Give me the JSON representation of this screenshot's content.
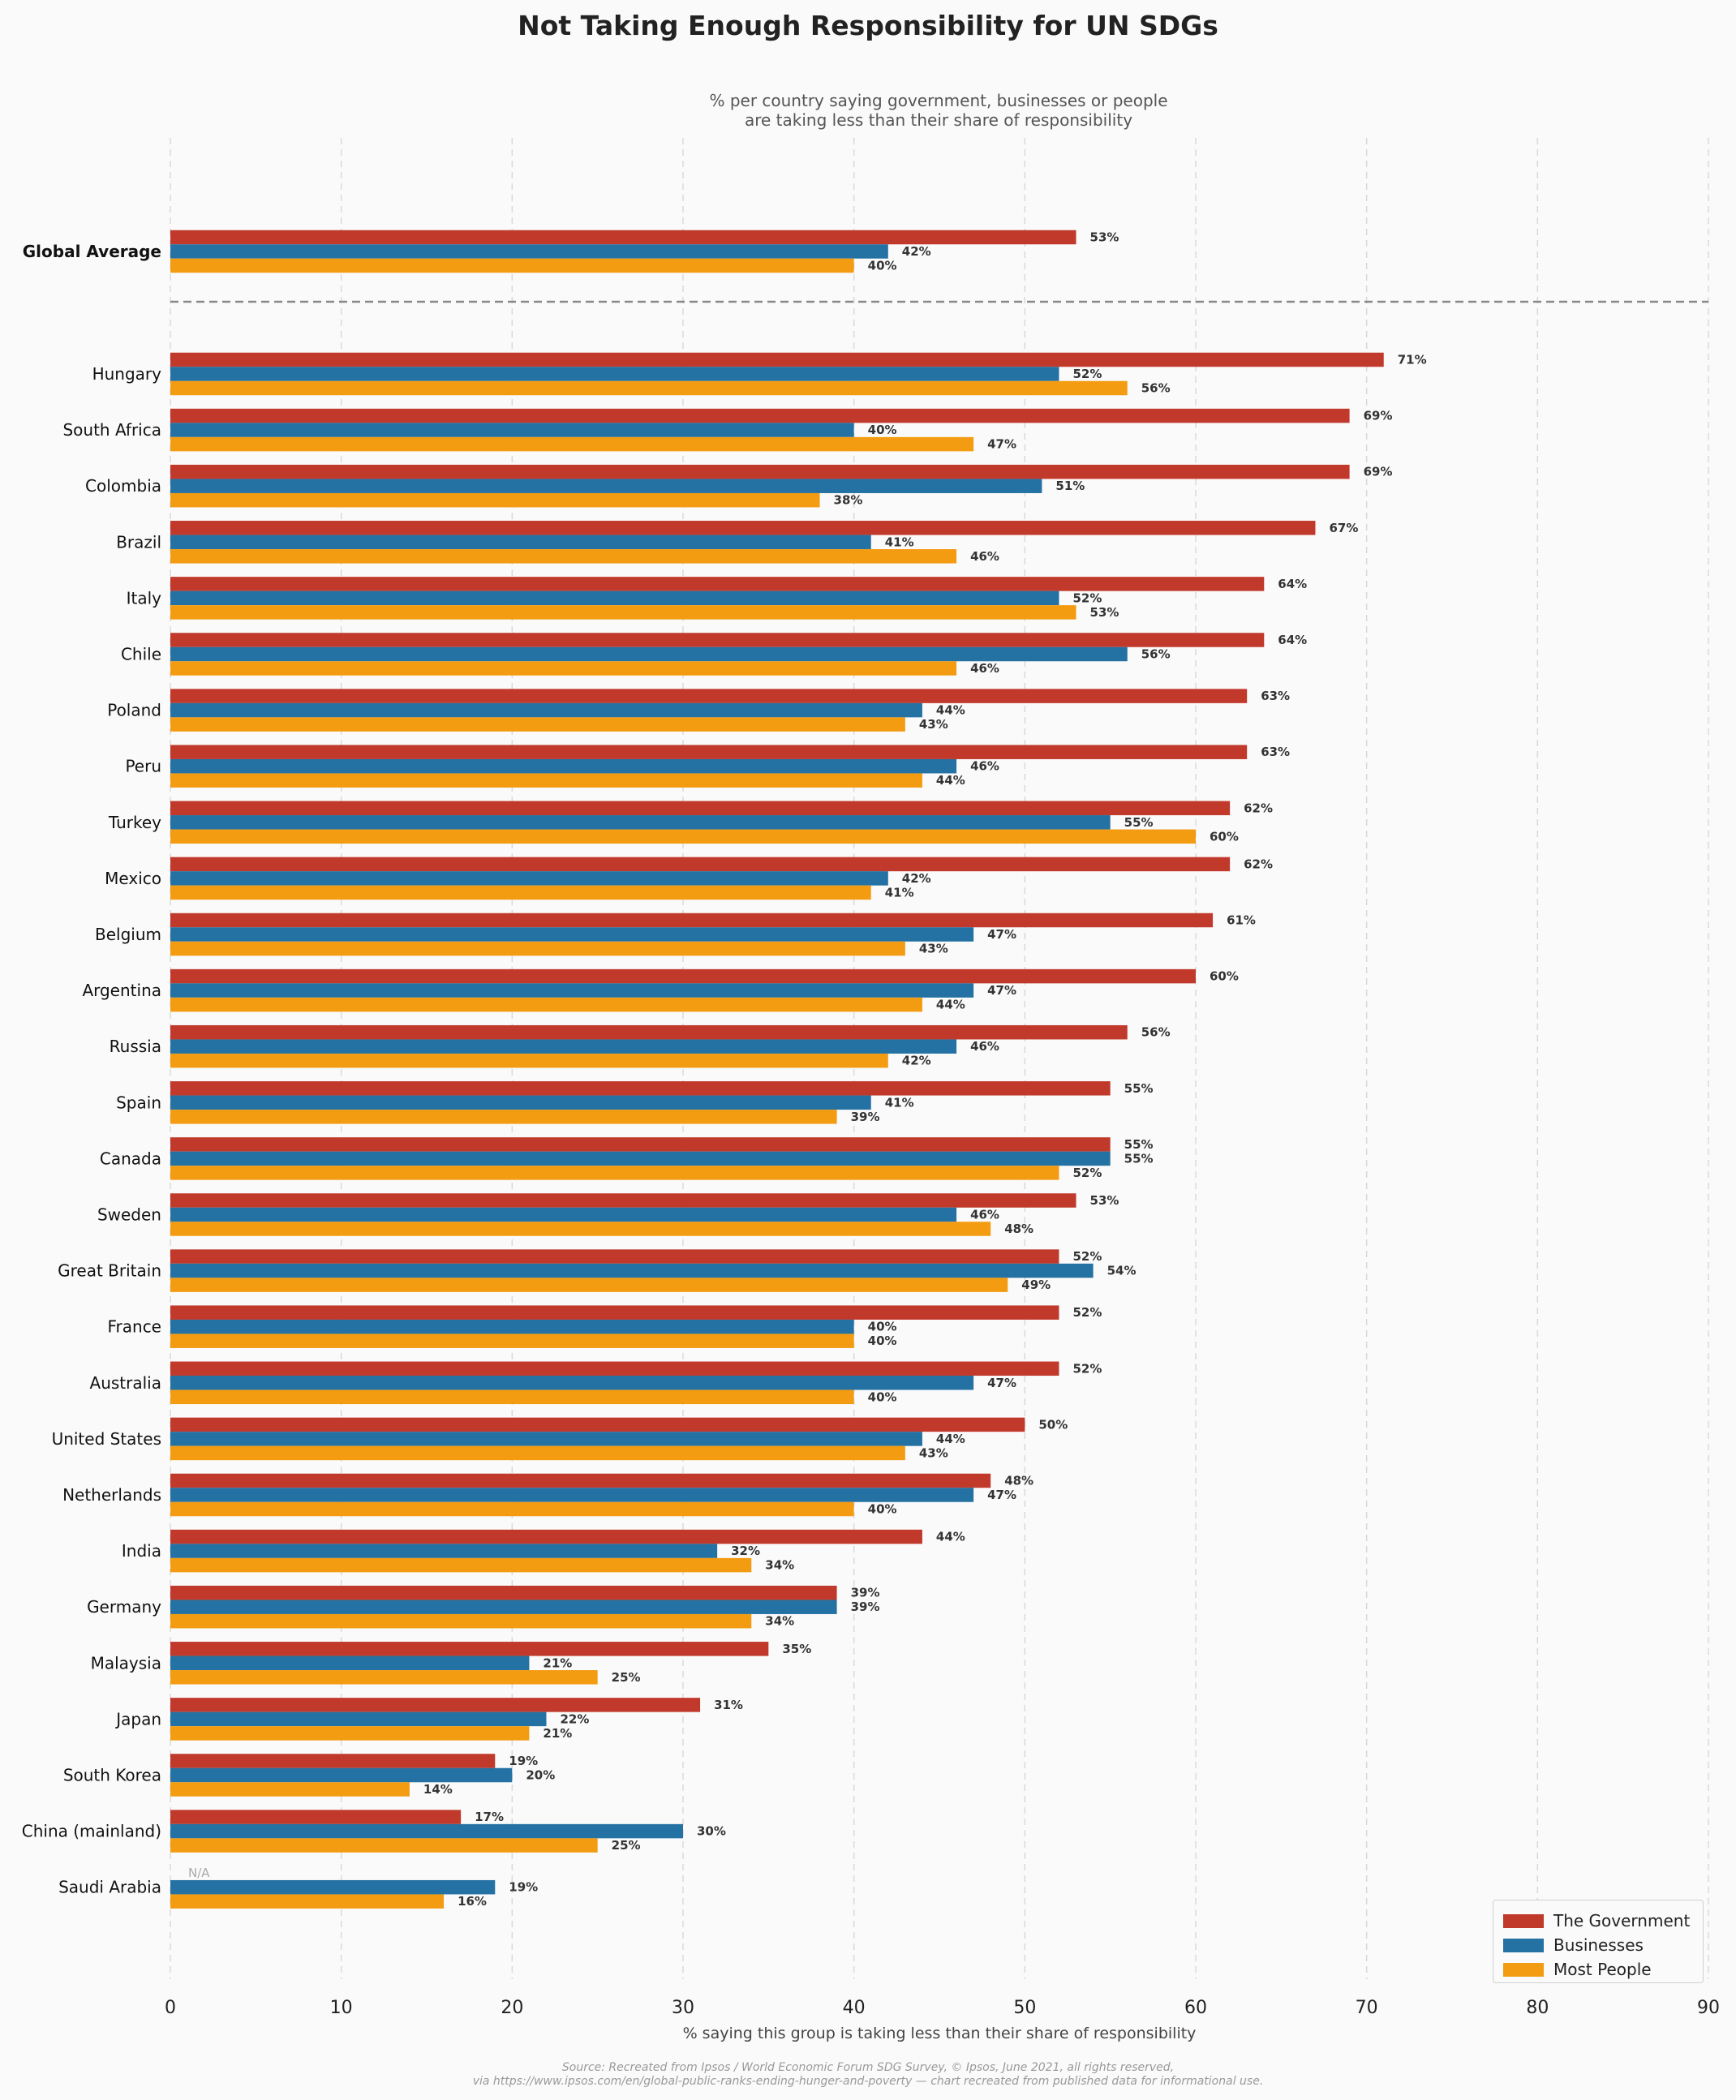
{
  "chart_data": {
    "type": "bar",
    "orientation": "horizontal",
    "title": "Not Taking Enough Responsibility for UN SDGs",
    "subtitle": [
      "% per country saying government, businesses or people",
      "are taking less than their share of responsibility"
    ],
    "xlabel": "% saying this group is taking less than their share of responsibility",
    "xlim": [
      0,
      90
    ],
    "xticks": [
      0,
      10,
      20,
      30,
      40,
      50,
      60,
      70,
      80,
      90
    ],
    "grid": "vertical dashed",
    "legend_position": "bottom-right",
    "source": [
      "Source: Recreated from Ipsos / World Economic Forum SDG Survey, © Ipsos, June 2021, all rights reserved,",
      "via https://www.ipsos.com/en/global-public-ranks-ending-hunger-and-poverty — chart recreated from published data for informational use."
    ],
    "na_label": "N/A",
    "value_suffix": "%",
    "global": {
      "category": "Global Average",
      "values": [
        53,
        42,
        40
      ]
    },
    "categories": [
      "Hungary",
      "South Africa",
      "Colombia",
      "Brazil",
      "Italy",
      "Chile",
      "Poland",
      "Peru",
      "Turkey",
      "Mexico",
      "Belgium",
      "Argentina",
      "Russia",
      "Spain",
      "Canada",
      "Sweden",
      "Great Britain",
      "France",
      "Australia",
      "United States",
      "Netherlands",
      "India",
      "Germany",
      "Malaysia",
      "Japan",
      "South Korea",
      "China (mainland)",
      "Saudi Arabia"
    ],
    "series": [
      {
        "name": "The Government",
        "color": "#c0392b",
        "values": [
          71,
          69,
          69,
          67,
          64,
          64,
          63,
          63,
          62,
          62,
          61,
          60,
          56,
          55,
          55,
          53,
          52,
          52,
          52,
          50,
          48,
          44,
          39,
          35,
          31,
          19,
          17,
          null
        ]
      },
      {
        "name": "Businesses",
        "color": "#2471a3",
        "values": [
          52,
          40,
          51,
          41,
          52,
          56,
          44,
          46,
          55,
          42,
          47,
          47,
          46,
          41,
          55,
          46,
          54,
          40,
          47,
          44,
          47,
          32,
          39,
          21,
          22,
          20,
          30,
          19
        ]
      },
      {
        "name": "Most People",
        "color": "#f39c12",
        "values": [
          56,
          47,
          38,
          46,
          53,
          46,
          43,
          44,
          60,
          41,
          43,
          44,
          42,
          39,
          52,
          48,
          49,
          40,
          40,
          43,
          40,
          34,
          34,
          25,
          21,
          14,
          25,
          16
        ]
      }
    ]
  }
}
